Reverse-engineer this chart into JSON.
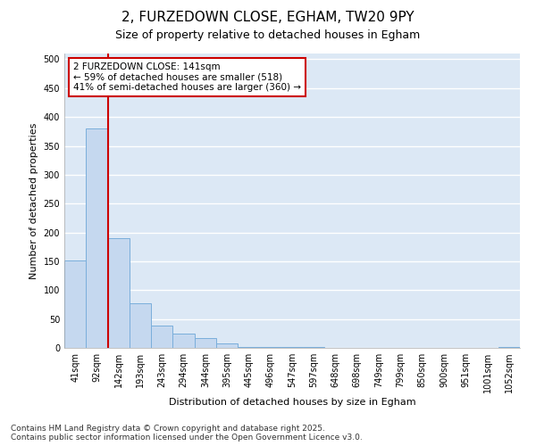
{
  "title_line1": "2, FURZEDOWN CLOSE, EGHAM, TW20 9PY",
  "title_line2": "Size of property relative to detached houses in Egham",
  "xlabel": "Distribution of detached houses by size in Egham",
  "ylabel": "Number of detached properties",
  "categories": [
    "41sqm",
    "92sqm",
    "142sqm",
    "193sqm",
    "243sqm",
    "294sqm",
    "344sqm",
    "395sqm",
    "445sqm",
    "496sqm",
    "547sqm",
    "597sqm",
    "648sqm",
    "698sqm",
    "749sqm",
    "799sqm",
    "850sqm",
    "900sqm",
    "951sqm",
    "1001sqm",
    "1052sqm"
  ],
  "values": [
    152,
    380,
    190,
    78,
    38,
    25,
    17,
    7,
    2,
    1,
    1,
    1,
    0,
    0,
    0,
    0,
    0,
    0,
    0,
    0,
    1
  ],
  "bar_color": "#c5d8ef",
  "bar_edge_color": "#7aaedb",
  "property_line_index": 2,
  "property_line_color": "#cc0000",
  "annotation_text": "2 FURZEDOWN CLOSE: 141sqm\n← 59% of detached houses are smaller (518)\n41% of semi-detached houses are larger (360) →",
  "annotation_box_color": "#cc0000",
  "ylim": [
    0,
    510
  ],
  "yticks": [
    0,
    50,
    100,
    150,
    200,
    250,
    300,
    350,
    400,
    450,
    500
  ],
  "plot_bg_color": "#dce8f5",
  "fig_bg_color": "#ffffff",
  "grid_color": "#ffffff",
  "footer_line1": "Contains HM Land Registry data © Crown copyright and database right 2025.",
  "footer_line2": "Contains public sector information licensed under the Open Government Licence v3.0.",
  "title1_fontsize": 11,
  "title2_fontsize": 9,
  "axis_label_fontsize": 8,
  "tick_fontsize": 7,
  "annotation_fontsize": 7.5,
  "footer_fontsize": 6.5
}
